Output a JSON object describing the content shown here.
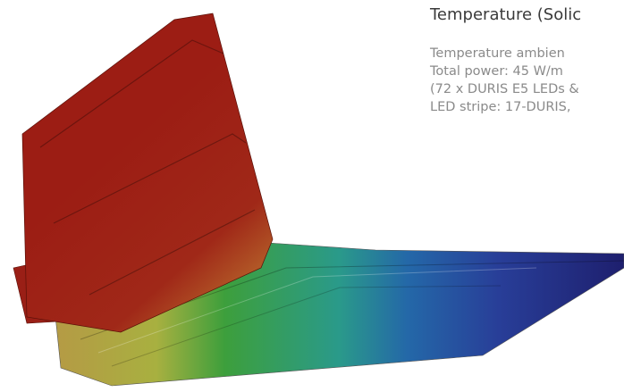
{
  "text": {
    "title": "Temperature (Solic",
    "lines": [
      "Temperature ambien",
      "Total power: 45 W/m",
      "(72 x DURIS E5 LEDs &",
      "LED stripe: 17-DURIS,"
    ]
  }
}
